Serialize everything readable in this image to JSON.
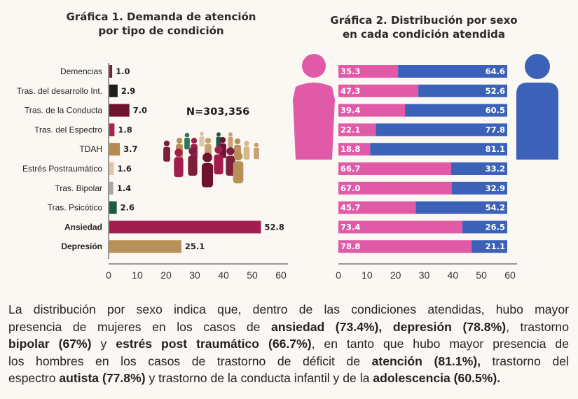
{
  "chart_data": [
    {
      "type": "bar",
      "orientation": "horizontal",
      "title": "Gráfica 1. Demanda de atención por tipo de condición",
      "title_lines": [
        "Gráfica 1. Demanda de atención",
        "por tipo de condición"
      ],
      "categories": [
        "Demencias",
        "Tras. del desarrollo Int.",
        "Tras. de la Conducta",
        "Tras. del Espectro",
        "TDAH",
        "Estrés Postraumático",
        "Tras. Bipolar",
        "Tras. Psicótico",
        "Ansiedad",
        "Depresión"
      ],
      "bold_categories": [
        "Ansiedad",
        "Depresión"
      ],
      "values": [
        1.0,
        2.9,
        7.0,
        1.8,
        3.7,
        1.6,
        1.4,
        2.6,
        52.8,
        25.1
      ],
      "value_labels": [
        "1.0",
        "2.9",
        "7.0",
        "1.8",
        "3.7",
        "1.6",
        "1.4",
        "2.6",
        "52.8",
        "25.1"
      ],
      "colors": [
        "#7c1f3f",
        "#1e1e1e",
        "#6e1230",
        "#a8254c",
        "#b58a4e",
        "#e3c4a4",
        "#a9a9a9",
        "#1f5a44",
        "#a01d4e",
        "#b8905a"
      ],
      "xlim": [
        0,
        60
      ],
      "ticks": [
        "0",
        "10",
        "20",
        "30",
        "40",
        "50",
        "60"
      ],
      "annotation": "N=303,356"
    },
    {
      "type": "bar",
      "orientation": "horizontal",
      "stacked": true,
      "title": "Gráfica 2. Distribución por sexo en cada condición atendida",
      "title_lines": [
        "Gráfica 2. Distribución por sexo",
        "en cada condición atendida"
      ],
      "series": [
        {
          "name": "Mujeres",
          "color": "#e05aa8",
          "values": [
            35.3,
            47.3,
            39.4,
            22.1,
            18.8,
            66.7,
            67.0,
            45.7,
            73.4,
            78.8
          ],
          "labels": [
            "35.3",
            "47.3",
            "39.4",
            "22.1",
            "18.8",
            "66.7",
            "67.0",
            "45.7",
            "73.4",
            "78.8"
          ]
        },
        {
          "name": "Hombres",
          "color": "#3b62b8",
          "values": [
            64.6,
            52.6,
            60.5,
            77.8,
            81.1,
            33.2,
            32.9,
            54.2,
            26.5,
            21.1
          ],
          "labels": [
            "64.6",
            "52.6",
            "60.5",
            "77.8",
            "81.1",
            "33.2",
            "32.9",
            "54.2",
            "26.5",
            "21.1"
          ]
        }
      ],
      "ticks": [
        "0",
        "10",
        "20",
        "30",
        "40",
        "50",
        "60"
      ],
      "tick_values": [
        0,
        10,
        20,
        30,
        40,
        50,
        60
      ]
    }
  ],
  "icons": {
    "female": "woman-icon",
    "male": "man-icon",
    "crowd": "people-crowd-icon",
    "female_color": "#e05aa8",
    "male_color": "#3b62b8"
  },
  "paragraph": {
    "l1": "La distribución por sexo indica que, dentro de las condiciones atendidas, hubo mayor",
    "l2a": "presencia de mujeres en los casos de ",
    "l2b": "ansiedad (73.4%), depresión (78.8%)",
    "l2c": ", trastorno",
    "l3a": "bipolar (67%)",
    "l3b": " y ",
    "l3c": "estrés post traumático (66.7%)",
    "l3d": ", en tanto que hubo mayor presencia de",
    "l4a": "los hombres en los casos de trastorno de déficit de ",
    "l4b": "atención (81.1%),",
    "l4c": " trastorno del",
    "l5a": "espectro ",
    "l5b": "autista (77.8%)",
    "l5c": " y trastorno de la conducta infantil y de la ",
    "l5d": "adolescencia (60.5%)."
  }
}
